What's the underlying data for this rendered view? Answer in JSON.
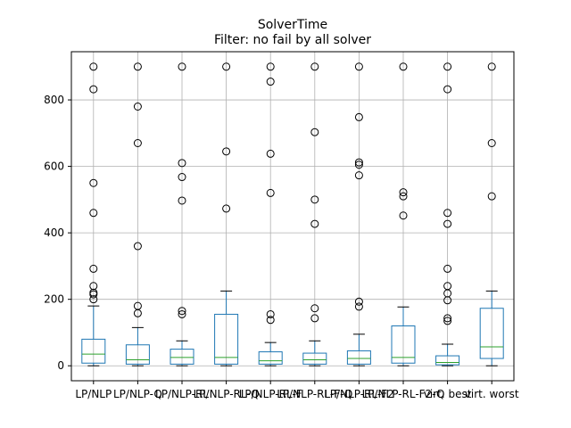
{
  "chart_data": {
    "type": "box",
    "title": "SolverTime",
    "subtitle": "Filter: no fail by all solver",
    "xlabel": "",
    "ylabel": "",
    "ylim": [
      -45,
      945
    ],
    "y_ticks": [
      0,
      200,
      400,
      600,
      800
    ],
    "grid": true,
    "categories": [
      "LP/NLP",
      "LP/NLP-Q",
      "LP/NLP-RL",
      "LP/NLP-RL-Q",
      "LP/NLP-RL-F",
      "LP/NLP-RL-F-Q",
      "LP/NLP-RL-F2",
      "LP/NLP-RL-F2-Q",
      "virt. best",
      "virt. worst"
    ],
    "boxes": [
      {
        "whislo": 0,
        "q1": 8,
        "med": 35,
        "q3": 80,
        "whishi": 180,
        "fliers": [
          200,
          215,
          220,
          240,
          292,
          460,
          550,
          832,
          900
        ]
      },
      {
        "whislo": 0,
        "q1": 5,
        "med": 18,
        "q3": 63,
        "whishi": 115,
        "fliers": [
          158,
          180,
          360,
          670,
          780,
          900
        ]
      },
      {
        "whislo": 0,
        "q1": 5,
        "med": 25,
        "q3": 50,
        "whishi": 75,
        "fliers": [
          155,
          165,
          497,
          568,
          610,
          900
        ]
      },
      {
        "whislo": 0,
        "q1": 5,
        "med": 25,
        "q3": 155,
        "whishi": 225,
        "fliers": [
          473,
          645,
          900
        ]
      },
      {
        "whislo": 0,
        "q1": 5,
        "med": 15,
        "q3": 42,
        "whishi": 70,
        "fliers": [
          138,
          155,
          520,
          638,
          855,
          900
        ]
      },
      {
        "whislo": 0,
        "q1": 5,
        "med": 18,
        "q3": 38,
        "whishi": 75,
        "fliers": [
          143,
          173,
          427,
          500,
          703,
          900
        ]
      },
      {
        "whislo": 0,
        "q1": 5,
        "med": 22,
        "q3": 45,
        "whishi": 95,
        "fliers": [
          178,
          193,
          573,
          605,
          612,
          748,
          900
        ]
      },
      {
        "whislo": 0,
        "q1": 8,
        "med": 25,
        "q3": 120,
        "whishi": 177,
        "fliers": [
          452,
          510,
          522,
          900
        ]
      },
      {
        "whislo": 0,
        "q1": 3,
        "med": 10,
        "q3": 30,
        "whishi": 65,
        "fliers": [
          135,
          143,
          197,
          218,
          240,
          292,
          427,
          460,
          832,
          900
        ]
      },
      {
        "whislo": 0,
        "q1": 22,
        "med": 57,
        "q3": 173,
        "whishi": 225,
        "fliers": [
          510,
          670,
          900
        ]
      }
    ],
    "colors": {
      "box": "#1f77b4",
      "median": "#2ca02c",
      "flier": "#000000",
      "grid": "#b0b0b0",
      "axis": "#000000"
    }
  }
}
